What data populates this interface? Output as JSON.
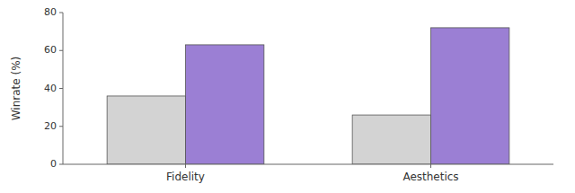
{
  "chart_data": {
    "type": "bar",
    "ylabel": "Winrate (%)",
    "categories": [
      "Fidelity",
      "Aesthetics"
    ],
    "series": [
      {
        "color": "#d3d3d3",
        "values": [
          36,
          26
        ]
      },
      {
        "color": "#9b7fd4",
        "values": [
          63,
          72
        ]
      }
    ],
    "ylim": [
      0,
      80
    ],
    "yticks": [
      0,
      20,
      40,
      60,
      80
    ]
  }
}
